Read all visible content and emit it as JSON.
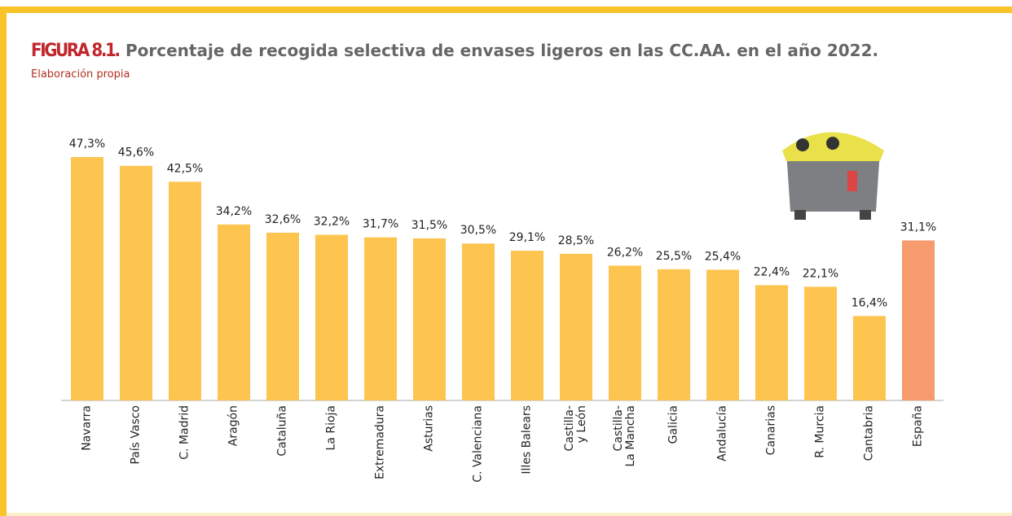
{
  "chart_data": {
    "type": "bar",
    "figure_label": "FIGURA 8.1.",
    "title": "Porcentaje de recogida selectiva de envases ligeros en las CC.AA. en el año 2022.",
    "subtitle": "Elaboración propia",
    "categories": [
      "Navarra",
      "País Vasco",
      "C. Madrid",
      "Aragón",
      "Cataluña",
      "La Rioja",
      "Extremadura",
      "Asturias",
      "C. Valenciana",
      "Illes Balears",
      "Castilla-\ny León",
      "Castilla-\nLa Mancha",
      "Galicia",
      "Andalucía",
      "Canarias",
      "R. Murcia",
      "Cantabria",
      "España"
    ],
    "values": [
      47.3,
      45.6,
      42.5,
      34.2,
      32.6,
      32.2,
      31.7,
      31.5,
      30.5,
      29.1,
      28.5,
      26.2,
      25.5,
      25.4,
      22.4,
      22.1,
      16.4,
      31.1
    ],
    "value_labels": [
      "47,3%",
      "45,6%",
      "42,5%",
      "34,2%",
      "32,6%",
      "32,2%",
      "31,7%",
      "31,5%",
      "30,5%",
      "29,1%",
      "28,5%",
      "26,2%",
      "25,5%",
      "25,4%",
      "22,4%",
      "22,1%",
      "16,4%",
      "31,1%"
    ],
    "colors": [
      "#fdc54f",
      "#fdc54f",
      "#fdc54f",
      "#fdc54f",
      "#fdc54f",
      "#fdc54f",
      "#fdc54f",
      "#fdc54f",
      "#fdc54f",
      "#fdc54f",
      "#fdc54f",
      "#fdc54f",
      "#fdc54f",
      "#fdc54f",
      "#fdc54f",
      "#fdc54f",
      "#fdc54f",
      "#f59b6e"
    ]
  }
}
